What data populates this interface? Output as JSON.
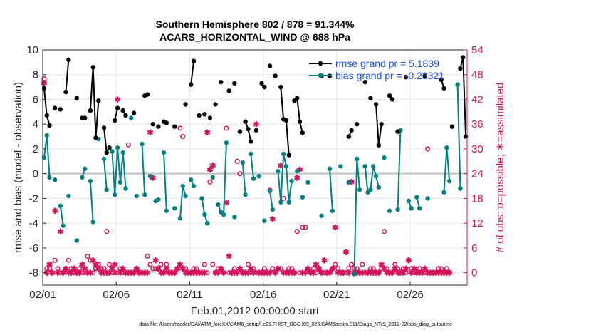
{
  "chart_data": {
    "type": "line",
    "title": [
      "Southern Hemisphere 802 / 878 = 91.344%",
      "ACARS_HORIZONTAL_WIND @ 688 hPa"
    ],
    "xlabel": "Feb.01,2012 00:00:00 start",
    "ylabel_left": "rmse and bias (model - observation)",
    "ylabel_right": "# of obs: o=possible; ∗=assimilated",
    "footer": "data file: /Users/raeder/DAI/ATM_forcXX/CAM6_setup/f.e21.FHIST_BGC.f09_025.CAM6assim.011/Diags_NTrS_2012-02/obs_diag_output.nc",
    "x_tick_labels": [
      "02/01",
      "02/06",
      "02/11",
      "02/16",
      "02/21",
      "02/26"
    ],
    "x_tick_days": [
      1,
      6,
      11,
      16,
      21,
      26
    ],
    "xlim": [
      1,
      29.875
    ],
    "ylim_left": [
      -9,
      10
    ],
    "yticks_left": [
      -8,
      -6,
      -4,
      -2,
      0,
      2,
      4,
      6,
      8,
      10
    ],
    "ylim_right": [
      -3,
      54
    ],
    "yticks_right": [
      0,
      6,
      12,
      18,
      24,
      30,
      36,
      42,
      48,
      54
    ],
    "zero_line": 0,
    "grid": true,
    "colors": {
      "rmse": "#000000",
      "bias": "#008080",
      "obs": "#d4145a",
      "zero": "#c0c0c0"
    },
    "legend": {
      "placement": "top-right",
      "rmse_label": "rmse grand pr = 5.1839",
      "bias_label": "bias grand pr = -0.23321"
    },
    "rmse": [
      6.9,
      4.7,
      3.9,
      null,
      5.3,
      null,
      5.2,
      null,
      6.6,
      9.2,
      null,
      null,
      6.1,
      null,
      4.5,
      4.5,
      null,
      5.1,
      8.6,
      2.9,
      5.9,
      null,
      3.7,
      1.7,
      2.1,
      null,
      4.3,
      5.3,
      null,
      5.1,
      4.7,
      null,
      null,
      4.9,
      null,
      null,
      null,
      6.3,
      6.4,
      null,
      4.0,
      null,
      3.8,
      null,
      4.2,
      4.1,
      null,
      null,
      3.8,
      null,
      null,
      null,
      5.6,
      null,
      7.2,
      9.1,
      null,
      4.7,
      null,
      4.8,
      null,
      4.5,
      null,
      5.6,
      null,
      7.4,
      null,
      null,
      6.7,
      null,
      7.3,
      null,
      3.4,
      null,
      4.2,
      3.6,
      2.6,
      null,
      3.5,
      null,
      7.3,
      7.0,
      null,
      8.7,
      null,
      7.9,
      null,
      7.0,
      4.4,
      4.3,
      1.5,
      null,
      5.9,
      6.1,
      4.2,
      3.3,
      null,
      null,
      null,
      null,
      null,
      null,
      7.9,
      null,
      null,
      7.9,
      null,
      null,
      null,
      null,
      null,
      null,
      3.0,
      3.5,
      null,
      4.0,
      null,
      null,
      7.4,
      null,
      6.1,
      null,
      5.6,
      2.3,
      4.0,
      null,
      null,
      6.3,
      6.0,
      null,
      3.4,
      null,
      null,
      7.8,
      null,
      null,
      null,
      null,
      null,
      null,
      7.9,
      null,
      null,
      null,
      null,
      null,
      7.6,
      6.9,
      null,
      null,
      3.8,
      null,
      null,
      8.5,
      9.4,
      3.0
    ],
    "bias": [
      1.3,
      3.1,
      -0.3,
      null,
      -0.5,
      null,
      -2.6,
      -4.2,
      null,
      -1.8,
      null,
      null,
      -5.4,
      null,
      -0.3,
      0.4,
      null,
      -0.6,
      -3.9,
      null,
      2.8,
      null,
      1.2,
      -1.3,
      null,
      1.8,
      -1.7,
      2.1,
      -0.7,
      1.7,
      -1.2,
      null,
      4.5,
      null,
      -1.8,
      null,
      2.4,
      -1.7,
      null,
      -0.2,
      null,
      -2.2,
      -2.1,
      null,
      1.7,
      -3.0,
      null,
      null,
      -2.8,
      null,
      -3.6,
      -1.0,
      -1.8,
      null,
      -0.5,
      -1.0,
      null,
      null,
      -2.0,
      -3.3,
      -4.0,
      null,
      -0.3,
      null,
      -2.5,
      -3.1,
      -3.3,
      2.5,
      null,
      null,
      -3.5,
      null,
      null,
      0.9,
      -1.7,
      null,
      1.6,
      -0.4,
      null,
      -0.2,
      null,
      -3.8,
      null,
      -1.4,
      -2.9,
      null,
      0.2,
      -2.3,
      1.6,
      0.6,
      -2.3,
      -0.6,
      null,
      0.2,
      null,
      -1.9,
      null,
      -0.7,
      null,
      null,
      null,
      null,
      -3.4,
      null,
      null,
      0.4,
      -3.0,
      null,
      null,
      0.6,
      null,
      null,
      -0.7,
      null,
      -8.1,
      1.2,
      -1.3,
      null,
      0.6,
      -1.5,
      -1.3,
      0.6,
      -0.2,
      -1.1,
      null,
      1.3,
      null,
      -3.0,
      null,
      null,
      -2.9,
      3.5,
      null,
      null,
      -2.2,
      -2.8,
      null,
      -1.9,
      -2.8,
      null,
      null,
      -2.0,
      null,
      null,
      null,
      null,
      null,
      -1.5,
      2.1,
      -0.6,
      null,
      null,
      7.2,
      -1.2
    ],
    "obs_possible": [
      47,
      1,
      1,
      0,
      3,
      1,
      0,
      0,
      1,
      3,
      1,
      0,
      0,
      1,
      0,
      0,
      4,
      3,
      0,
      1,
      2,
      1,
      1,
      10,
      2,
      0,
      0,
      0,
      1,
      0,
      0,
      31,
      0,
      0,
      1,
      0,
      0,
      0,
      4,
      2,
      1,
      1,
      1,
      2,
      0,
      2,
      0,
      0,
      0,
      1,
      35,
      33,
      1,
      0,
      0,
      1,
      1,
      0,
      0,
      2,
      0,
      22,
      2,
      0,
      1,
      1,
      0,
      35,
      0,
      0,
      1,
      27,
      24,
      0,
      0,
      2,
      0,
      1,
      0,
      0,
      0,
      1,
      0,
      20,
      1,
      0,
      1,
      1,
      18,
      0,
      1,
      1,
      0,
      10,
      0,
      11,
      11,
      1,
      0,
      1,
      0,
      1,
      0,
      0,
      0,
      0,
      1,
      2,
      1,
      0,
      0,
      0,
      1,
      2,
      1,
      1,
      0,
      2,
      0,
      0,
      1,
      1,
      0,
      0,
      1,
      10,
      1,
      0,
      0,
      2,
      1,
      0,
      1,
      0,
      3,
      1,
      0,
      0,
      1,
      0,
      0,
      30,
      0,
      0,
      0,
      1,
      1,
      0,
      1,
      0
    ],
    "obs_assimilated": [
      46,
      0,
      2,
      0,
      15,
      0,
      10,
      0,
      1,
      0,
      0,
      1,
      0,
      0,
      2,
      1,
      0,
      0,
      3,
      2,
      1,
      0,
      0,
      0,
      0,
      1,
      2,
      42,
      0,
      1,
      0,
      0,
      0,
      0,
      1,
      0,
      0,
      0,
      0,
      34,
      23,
      3,
      1,
      0,
      0,
      1,
      0,
      0,
      0,
      1,
      2,
      1,
      0,
      0,
      0,
      0,
      0,
      0,
      0,
      0,
      34,
      25,
      26,
      0,
      0,
      1,
      0,
      17,
      4,
      0,
      0,
      0,
      1,
      0,
      0,
      0,
      1,
      0,
      36,
      0,
      0,
      0,
      0,
      0,
      13,
      0,
      1,
      26,
      0,
      0,
      0,
      0,
      0,
      23,
      25,
      0,
      0,
      1,
      0,
      0,
      2,
      1,
      0,
      3,
      0,
      0,
      1,
      11,
      0,
      0,
      0,
      5,
      0,
      22,
      0,
      0,
      0,
      0,
      0,
      0,
      0,
      0,
      0,
      0,
      2,
      1,
      0,
      0,
      0,
      1,
      0,
      0,
      0,
      1,
      3,
      0,
      1,
      0,
      0,
      0,
      1,
      0,
      0,
      0,
      0,
      0,
      0,
      0,
      0,
      0
    ]
  }
}
